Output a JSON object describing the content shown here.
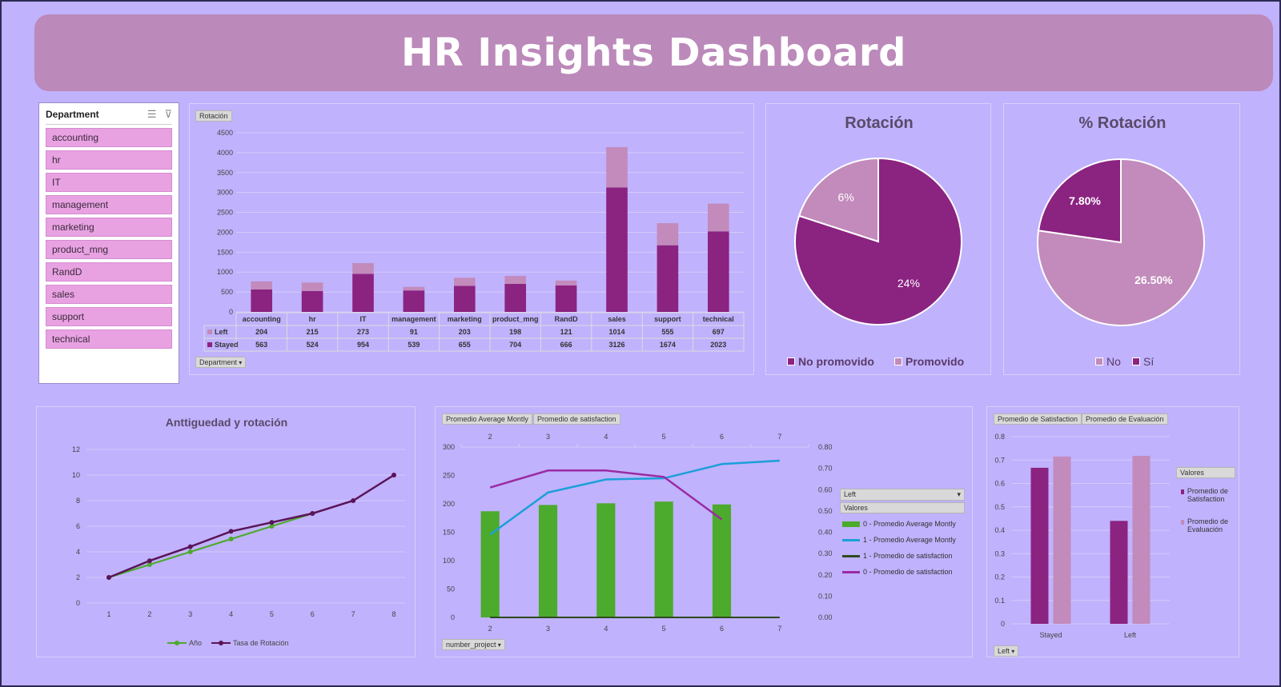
{
  "title": "HR Insights Dashboard",
  "colors": {
    "background": "#c0b2fd",
    "banner": "#bb89ba",
    "dark": "#8b2381",
    "light": "#c28bbb",
    "green": "#4caa2c",
    "blue": "#1b9fd8",
    "purple": "#9b2aa3",
    "line_dark": "#5a1457",
    "slicer_item": "#e8a2e2"
  },
  "slicer": {
    "title": "Department",
    "multiselect_icon": "multi-select-icon",
    "clear_filter_icon": "clear-filter-icon",
    "items": [
      "accounting",
      "hr",
      "IT",
      "management",
      "marketing",
      "product_mng",
      "RandD",
      "sales",
      "support",
      "technical"
    ]
  },
  "rotation_chart": {
    "field_button": "Rotación",
    "axis_button": "Department",
    "chart_data": {
      "type": "bar",
      "stacked": true,
      "categories": [
        "accounting",
        "hr",
        "IT",
        "management",
        "marketing",
        "product_mng",
        "RandD",
        "sales",
        "support",
        "technical"
      ],
      "series": [
        {
          "name": "Left",
          "values": [
            204,
            215,
            273,
            91,
            203,
            198,
            121,
            1014,
            555,
            697
          ]
        },
        {
          "name": "Stayed",
          "values": [
            563,
            524,
            954,
            539,
            655,
            704,
            666,
            3126,
            1674,
            2023
          ]
        }
      ],
      "ylim": [
        0,
        4500
      ],
      "yticks": [
        0,
        500,
        1000,
        1500,
        2000,
        2500,
        3000,
        3500,
        4000,
        4500
      ],
      "data_table": true
    }
  },
  "pie_rotacion": {
    "title": "Rotación",
    "chart_data": {
      "type": "pie",
      "labels": [
        "No promovido",
        "Promovido"
      ],
      "values": [
        24,
        6
      ],
      "value_labels": [
        "24%",
        "6%"
      ]
    },
    "legend": [
      "No promovido",
      "Promovido"
    ]
  },
  "pie_pct_rotacion": {
    "title": "% Rotación",
    "chart_data": {
      "type": "pie",
      "labels": [
        "No",
        "Sí"
      ],
      "values": [
        26.5,
        7.8
      ],
      "value_labels": [
        "26.50%",
        "7.80%"
      ]
    },
    "legend": [
      "No",
      "Sí"
    ]
  },
  "tenure_chart": {
    "title": "Anttiguedad y rotación",
    "chart_data": {
      "type": "line",
      "x": [
        1,
        2,
        3,
        4,
        5,
        6,
        7,
        8
      ],
      "series": [
        {
          "name": "Año",
          "x": [
            1,
            2,
            3,
            4,
            5,
            6
          ],
          "values": [
            2,
            3,
            4,
            5,
            6,
            7
          ]
        },
        {
          "name": "Tasa de Rotación",
          "x": [
            1,
            2,
            3,
            4,
            5,
            6,
            7,
            8
          ],
          "values": [
            2,
            3.3,
            4.4,
            5.6,
            6.3,
            7,
            8,
            10
          ]
        }
      ],
      "ylim": [
        0,
        12
      ],
      "yticks": [
        0,
        2,
        4,
        6,
        8,
        10,
        12
      ],
      "legend": "bottom"
    }
  },
  "project_chart": {
    "buttons": [
      "Promedio Average Montly",
      "Promedio de satisfaction"
    ],
    "axis_button": "number_project",
    "filter_button": "Left",
    "legend_title": "Valores",
    "chart_data": {
      "type": "bar",
      "x": [
        2,
        3,
        4,
        5,
        6,
        7
      ],
      "series": [
        {
          "name": "0 - Promedio Average Montly",
          "kind": "bar",
          "axis": "primary",
          "x": [
            2,
            3,
            4,
            5,
            6
          ],
          "values": [
            187,
            198,
            201,
            204,
            199
          ]
        },
        {
          "name": "1 - Promedio Average Montly",
          "kind": "line",
          "axis": "primary",
          "x": [
            2,
            3,
            4,
            5,
            6,
            7
          ],
          "values": [
            146,
            220,
            243,
            245,
            270,
            276
          ]
        },
        {
          "name": "1 - Promedio de satisfaction",
          "kind": "line",
          "axis": "secondary",
          "x": [
            2,
            3,
            4,
            5,
            6,
            7
          ],
          "values": [
            0,
            0,
            0,
            0,
            0,
            0
          ]
        },
        {
          "name": "0 - Promedio de satisfaction",
          "kind": "line",
          "axis": "secondary",
          "x": [
            2,
            3,
            4,
            5,
            6
          ],
          "values": [
            0.61,
            0.69,
            0.69,
            0.66,
            0.46
          ]
        }
      ],
      "ylim": [
        0,
        300
      ],
      "yticks": [
        0,
        50,
        100,
        150,
        200,
        250,
        300
      ],
      "y2lim": [
        0,
        0.8
      ],
      "y2ticks": [
        "0.00",
        "0.10",
        "0.20",
        "0.30",
        "0.40",
        "0.50",
        "0.60",
        "0.70",
        "0.80"
      ]
    }
  },
  "satisfaction_chart": {
    "buttons": [
      "Promedio de Satisfaction",
      "Promedio de Evaluación"
    ],
    "axis_button": "Left",
    "legend_title": "Valores",
    "chart_data": {
      "type": "bar",
      "categories": [
        "Stayed",
        "Left"
      ],
      "series": [
        {
          "name": "Promedio de Satisfaction",
          "values": [
            0.667,
            0.44
          ]
        },
        {
          "name": "Promedio de Evaluación",
          "values": [
            0.715,
            0.718
          ]
        }
      ],
      "ylim": [
        0,
        0.8
      ],
      "yticks": [
        "0",
        "0.1",
        "0.2",
        "0.3",
        "0.4",
        "0.5",
        "0.6",
        "0.7",
        "0.8"
      ]
    }
  }
}
